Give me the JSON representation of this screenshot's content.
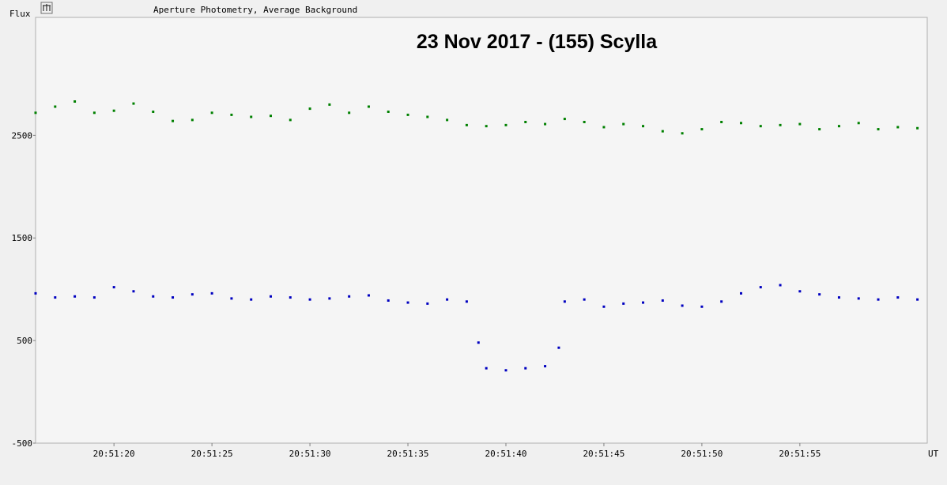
{
  "header": {
    "icon": "chart-options-icon",
    "subtitle": "Aperture Photometry, Average Background"
  },
  "chart_data": {
    "type": "scatter",
    "title": "23 Nov 2017 - (155) Scylla",
    "ylabel": "Flux",
    "xlabel": "UT",
    "xlim": [
      "20:51:16.0",
      "20:52:01.5"
    ],
    "ylim": [
      -500,
      3650
    ],
    "yticks": [
      -500,
      500,
      1500,
      2500
    ],
    "ytick_labels": [
      "-500",
      "500",
      "1500",
      "2500"
    ],
    "xticks": [
      "20:51:20",
      "20:51:25",
      "20:51:30",
      "20:51:35",
      "20:51:40",
      "20:51:45",
      "20:51:50",
      "20:51:55"
    ],
    "grid": false,
    "legend": "none",
    "series": [
      {
        "color": "#008000",
        "marker": "square",
        "points": [
          [
            "20:51:16",
            "2720"
          ],
          [
            "20:51:17",
            "2780"
          ],
          [
            "20:51:18",
            "2830"
          ],
          [
            "20:51:19",
            "2720"
          ],
          [
            "20:51:20",
            "2740"
          ],
          [
            "20:51:21",
            "2810"
          ],
          [
            "20:51:22",
            "2730"
          ],
          [
            "20:51:23",
            "2640"
          ],
          [
            "20:51:24",
            "2650"
          ],
          [
            "20:51:25",
            "2720"
          ],
          [
            "20:51:26",
            "2700"
          ],
          [
            "20:51:27",
            "2680"
          ],
          [
            "20:51:28",
            "2690"
          ],
          [
            "20:51:29",
            "2650"
          ],
          [
            "20:51:30",
            "2760"
          ],
          [
            "20:51:31",
            "2800"
          ],
          [
            "20:51:32",
            "2720"
          ],
          [
            "20:51:33",
            "2780"
          ],
          [
            "20:51:34",
            "2730"
          ],
          [
            "20:51:35",
            "2700"
          ],
          [
            "20:51:36",
            "2680"
          ],
          [
            "20:51:37",
            "2650"
          ],
          [
            "20:51:38",
            "2600"
          ],
          [
            "20:51:39",
            "2590"
          ],
          [
            "20:51:40",
            "2600"
          ],
          [
            "20:51:41",
            "2630"
          ],
          [
            "20:51:42",
            "2610"
          ],
          [
            "20:51:43",
            "2660"
          ],
          [
            "20:51:44",
            "2630"
          ],
          [
            "20:51:45",
            "2580"
          ],
          [
            "20:51:46",
            "2610"
          ],
          [
            "20:51:47",
            "2590"
          ],
          [
            "20:51:48",
            "2540"
          ],
          [
            "20:51:49",
            "2520"
          ],
          [
            "20:51:50",
            "2560"
          ],
          [
            "20:51:51",
            "2630"
          ],
          [
            "20:51:52",
            "2620"
          ],
          [
            "20:51:53",
            "2590"
          ],
          [
            "20:51:54",
            "2600"
          ],
          [
            "20:51:55",
            "2610"
          ],
          [
            "20:51:56",
            "2560"
          ],
          [
            "20:51:57",
            "2590"
          ],
          [
            "20:51:58",
            "2620"
          ],
          [
            "20:51:59",
            "2560"
          ],
          [
            "20:52:00",
            "2580"
          ],
          [
            "20:52:01",
            "2570"
          ]
        ]
      },
      {
        "color": "#0000c0",
        "marker": "square",
        "points": [
          [
            "20:51:16",
            "960"
          ],
          [
            "20:51:17",
            "920"
          ],
          [
            "20:51:18",
            "930"
          ],
          [
            "20:51:19",
            "920"
          ],
          [
            "20:51:20",
            "1020"
          ],
          [
            "20:51:21",
            "980"
          ],
          [
            "20:51:22",
            "930"
          ],
          [
            "20:51:23",
            "920"
          ],
          [
            "20:51:24",
            "950"
          ],
          [
            "20:51:25",
            "960"
          ],
          [
            "20:51:26",
            "910"
          ],
          [
            "20:51:27",
            "900"
          ],
          [
            "20:51:28",
            "930"
          ],
          [
            "20:51:29",
            "920"
          ],
          [
            "20:51:30",
            "900"
          ],
          [
            "20:51:31",
            "910"
          ],
          [
            "20:51:32",
            "930"
          ],
          [
            "20:51:33",
            "940"
          ],
          [
            "20:51:34",
            "890"
          ],
          [
            "20:51:35",
            "870"
          ],
          [
            "20:51:36",
            "860"
          ],
          [
            "20:51:37",
            "900"
          ],
          [
            "20:51:38",
            "880"
          ],
          [
            "20:51:38.6",
            "480"
          ],
          [
            "20:51:39",
            "230"
          ],
          [
            "20:51:40",
            "210"
          ],
          [
            "20:51:41",
            "230"
          ],
          [
            "20:51:42",
            "250"
          ],
          [
            "20:51:42.7",
            "430"
          ],
          [
            "20:51:43",
            "880"
          ],
          [
            "20:51:44",
            "900"
          ],
          [
            "20:51:45",
            "830"
          ],
          [
            "20:51:46",
            "860"
          ],
          [
            "20:51:47",
            "870"
          ],
          [
            "20:51:48",
            "890"
          ],
          [
            "20:51:49",
            "840"
          ],
          [
            "20:51:50",
            "830"
          ],
          [
            "20:51:51",
            "880"
          ],
          [
            "20:51:52",
            "960"
          ],
          [
            "20:51:53",
            "1020"
          ],
          [
            "20:51:54",
            "1040"
          ],
          [
            "20:51:55",
            "980"
          ],
          [
            "20:51:56",
            "950"
          ],
          [
            "20:51:57",
            "920"
          ],
          [
            "20:51:58",
            "910"
          ],
          [
            "20:51:59",
            "900"
          ],
          [
            "20:52:00",
            "920"
          ],
          [
            "20:52:01",
            "900"
          ]
        ]
      }
    ]
  }
}
